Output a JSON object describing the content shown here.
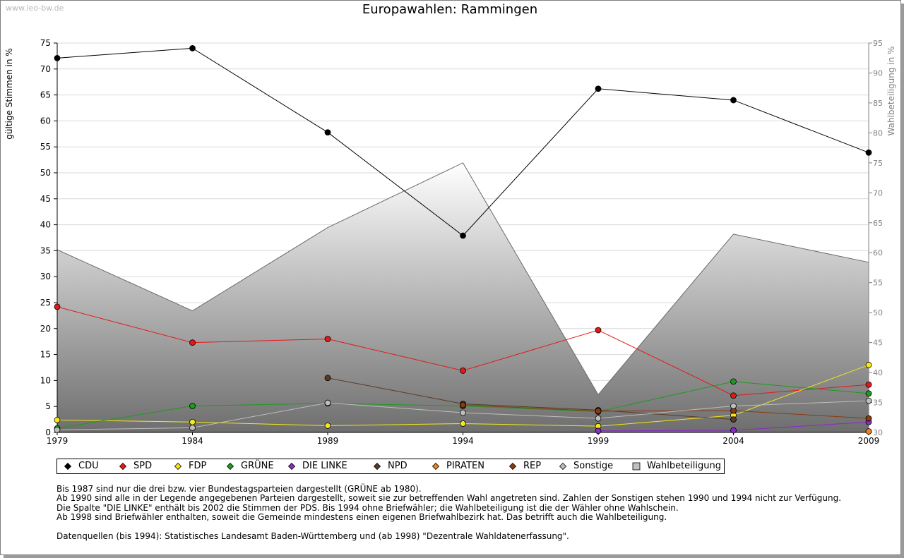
{
  "site": "www.leo-bw.de",
  "chart_data": {
    "type": "line",
    "title": "Europawahlen: Rammingen",
    "ylabel": "gültige Stimmen in %",
    "ylabel_right": "Wahlbeteiligung in %",
    "x": [
      "1979",
      "1984",
      "1989",
      "1994",
      "1999",
      "2004",
      "2009"
    ],
    "ylim": [
      0,
      75
    ],
    "ylim_right": [
      30,
      95
    ],
    "yticks": [
      0,
      5,
      10,
      15,
      20,
      25,
      30,
      35,
      40,
      45,
      50,
      55,
      60,
      65,
      70,
      75
    ],
    "yticks_right": [
      30,
      35,
      40,
      45,
      50,
      55,
      60,
      65,
      70,
      75,
      80,
      85,
      90,
      95
    ],
    "grid": true,
    "legend_position": "bottom",
    "series": [
      {
        "name": "CDU",
        "color": "#000000",
        "values": [
          72.1,
          74.0,
          57.8,
          37.9,
          66.2,
          64.0,
          53.9
        ]
      },
      {
        "name": "SPD",
        "color": "#e31919",
        "values": [
          24.2,
          17.3,
          18.0,
          11.9,
          19.7,
          7.1,
          9.2
        ]
      },
      {
        "name": "FDP",
        "color": "#f2e81a",
        "values": [
          2.4,
          2.0,
          1.3,
          1.7,
          1.2,
          3.3,
          13.0
        ]
      },
      {
        "name": "GRÜNE",
        "color": "#1e9a1e",
        "values": [
          0.8,
          5.1,
          5.6,
          5.1,
          4.0,
          9.8,
          7.5
        ]
      },
      {
        "name": "DIE LINKE",
        "color": "#8a2bc8",
        "values": [
          null,
          null,
          null,
          null,
          0.3,
          0.4,
          2.0
        ]
      },
      {
        "name": "NPD",
        "color": "#5a3a25",
        "values": [
          null,
          null,
          10.5,
          5.5,
          4.3,
          2.5,
          null
        ]
      },
      {
        "name": "PIRATEN",
        "color": "#f07f1c",
        "values": [
          null,
          null,
          null,
          null,
          null,
          null,
          0.2
        ]
      },
      {
        "name": "REP",
        "color": "#8a3a12",
        "values": [
          null,
          null,
          null,
          5.3,
          4.1,
          4.2,
          2.7
        ]
      },
      {
        "name": "Sonstige",
        "color": "#bdbdbd",
        "values": [
          0.5,
          0.9,
          5.7,
          3.8,
          2.7,
          5.1,
          6.1
        ]
      }
    ],
    "turnout": {
      "name": "Wahlbeteiligung",
      "values": [
        60.5,
        50.3,
        64.2,
        75.0,
        36.3,
        63.1,
        58.4
      ]
    }
  },
  "notes": [
    "Bis 1987 sind nur die drei bzw. vier Bundestagsparteien dargestellt (GRÜNE ab 1980).",
    "Ab 1990 sind alle in der Legende angegebenen Parteien dargestellt, soweit sie zur betreffenden Wahl angetreten sind. Zahlen der Sonstigen stehen 1990 und 1994 nicht zur Verfügung.",
    "Die Spalte \"DIE LINKE\" enthält bis 2002 die Stimmen der PDS. Bis 1994 ohne Briefwähler; die Wahlbeteiligung ist die der Wähler ohne Wahlschein.",
    "Ab 1998 sind Briefwähler enthalten, soweit die Gemeinde mindestens einen eigenen Briefwahlbezirk hat. Das betrifft auch die Wahlbeteiligung.",
    "",
    "Datenquellen (bis 1994): Statistisches Landesamt Baden-Württemberg und (ab 1998) \"Dezentrale Wahldatenerfassung\"."
  ]
}
